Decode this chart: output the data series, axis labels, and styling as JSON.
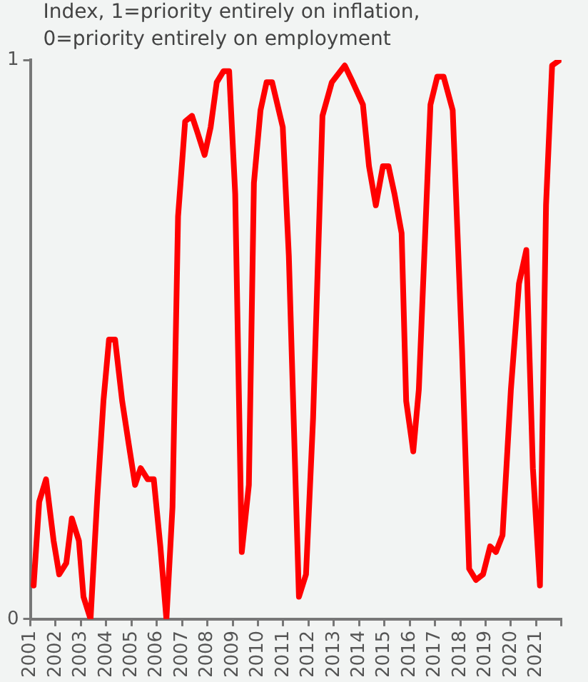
{
  "chart_data": {
    "type": "line",
    "annotations": [
      "Index, 1=priority entirely on inflation,",
      "0=priority entirely on employment"
    ],
    "xlim": [
      2001,
      2022
    ],
    "xticks": [
      2001,
      2002,
      2003,
      2004,
      2005,
      2006,
      2007,
      2008,
      2009,
      2010,
      2011,
      2012,
      2013,
      2014,
      2015,
      2016,
      2017,
      2018,
      2019,
      2020,
      2021,
      {
        "value": 2022,
        "label": null
      }
    ],
    "ylim": [
      0,
      1
    ],
    "yticks": [
      0,
      1
    ],
    "grid": false,
    "legend": false,
    "marker": "none",
    "line_style": "solid",
    "series": [
      {
        "color": "#ff0000",
        "x": [
          2001.13,
          2001.35,
          2001.62,
          2001.92,
          2002.14,
          2002.42,
          2002.64,
          2002.92,
          2003.1,
          2003.38,
          2003.65,
          2003.89,
          2004.11,
          2004.35,
          2004.63,
          2004.9,
          2005.14,
          2005.36,
          2005.64,
          2005.88,
          2006.14,
          2006.38,
          2006.62,
          2006.84,
          2007.12,
          2007.39,
          2007.61,
          2007.89,
          2008.13,
          2008.37,
          2008.64,
          2008.86,
          2009.1,
          2009.36,
          2009.64,
          2009.84,
          2010.1,
          2010.34,
          2010.56,
          2010.98,
          2011.22,
          2011.62,
          2011.9,
          2012.18,
          2012.55,
          2012.92,
          2013.43,
          2013.75,
          2014.15,
          2014.39,
          2014.66,
          2014.94,
          2015.16,
          2015.4,
          2015.68,
          2015.86,
          2016.14,
          2016.36,
          2016.82,
          2017.09,
          2017.34,
          2017.7,
          2018.07,
          2018.35,
          2018.62,
          2018.9,
          2019.18,
          2019.41,
          2019.67,
          2020.0,
          2020.32,
          2020.61,
          2020.87,
          2021.15,
          2021.39,
          2021.63,
          2021.94
        ],
        "values": [
          0.06,
          0.21,
          0.25,
          0.14,
          0.08,
          0.1,
          0.18,
          0.14,
          0.04,
          0,
          0.22,
          0.39,
          0.5,
          0.5,
          0.39,
          0.31,
          0.24,
          0.27,
          0.25,
          0.25,
          0.13,
          0,
          0.2,
          0.72,
          0.89,
          0.9,
          0.87,
          0.83,
          0.88,
          0.96,
          0.98,
          0.98,
          0.76,
          0.12,
          0.24,
          0.78,
          0.91,
          0.96,
          0.96,
          0.88,
          0.65,
          0.04,
          0.08,
          0.36,
          0.9,
          0.96,
          0.99,
          0.96,
          0.92,
          0.81,
          0.74,
          0.81,
          0.81,
          0.76,
          0.69,
          0.39,
          0.3,
          0.41,
          0.92,
          0.97,
          0.97,
          0.91,
          0.48,
          0.09,
          0.07,
          0.08,
          0.13,
          0.12,
          0.15,
          0.41,
          0.6,
          0.66,
          0.27,
          0.06,
          0.74,
          0.99,
          1
        ]
      }
    ]
  }
}
